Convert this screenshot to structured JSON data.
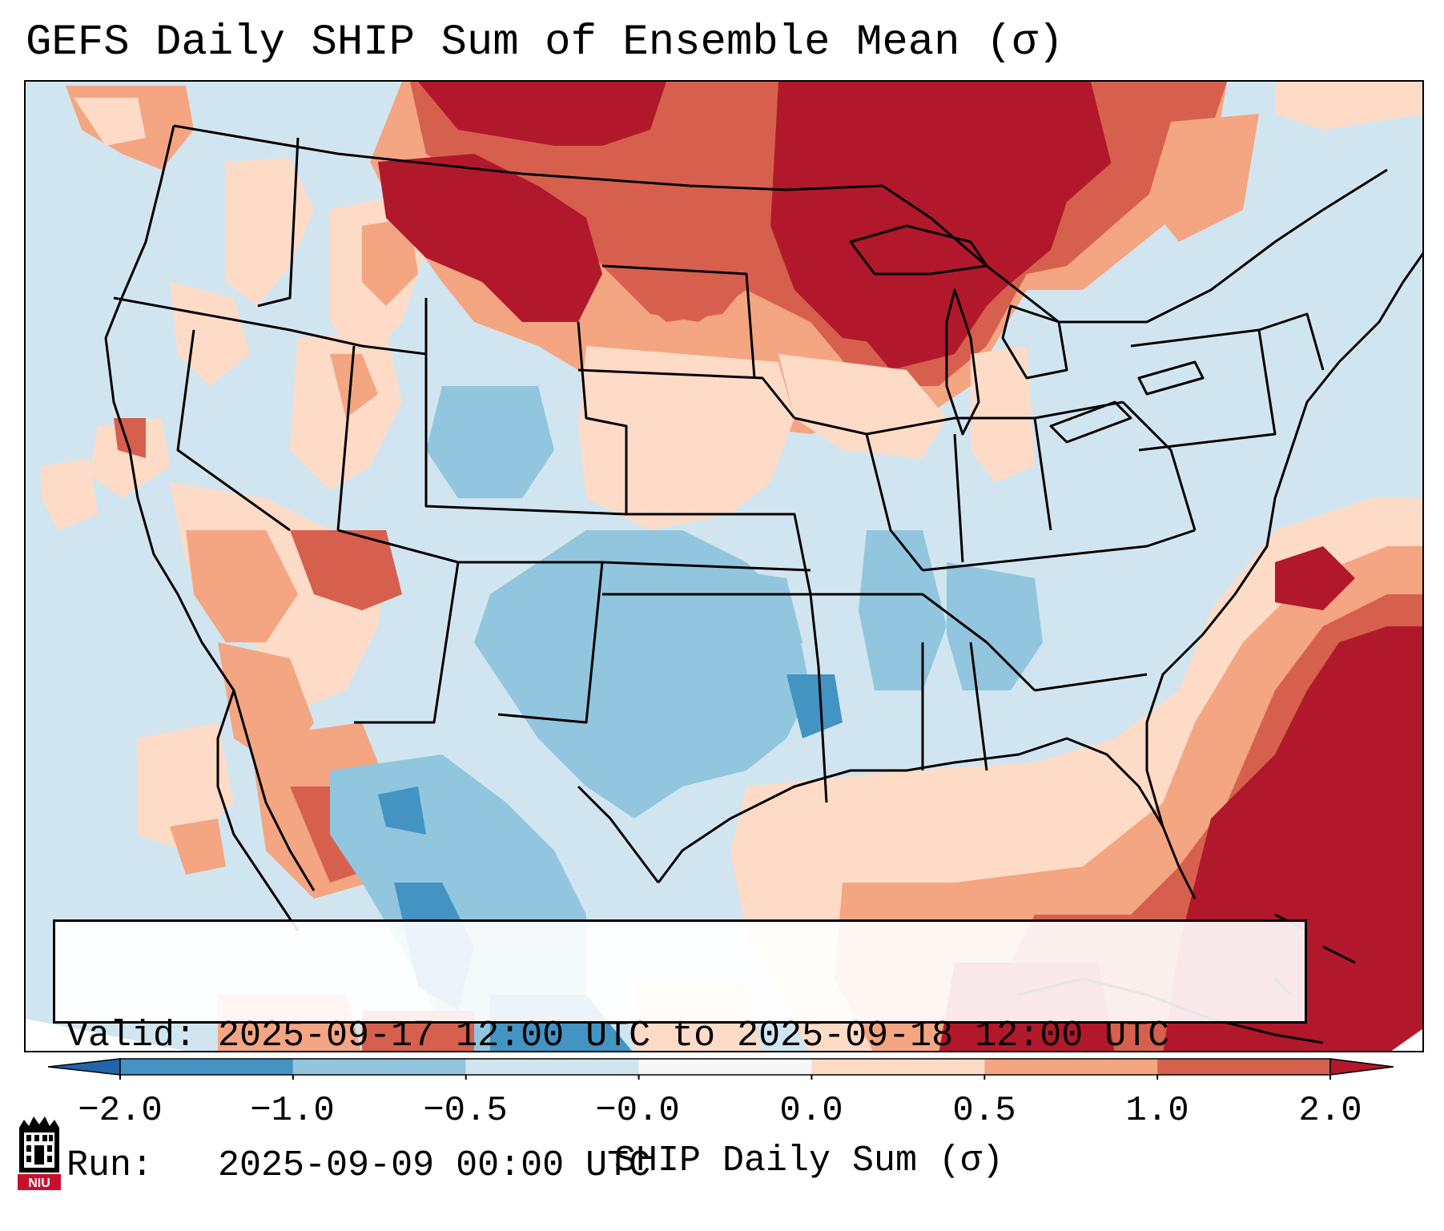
{
  "title": "GEFS Daily SHIP Sum of Ensemble Mean (σ)",
  "info": {
    "valid": "Valid: 2025-09-17 12:00 UTC to 2025-09-18 12:00 UTC",
    "run": "Run:   2025-09-09 00:00 UTC"
  },
  "colorbar": {
    "label": "SHIP Daily Sum (σ)",
    "ticks": [
      "−2.0",
      "−1.0",
      "−0.5",
      "−0.0",
      "0.0",
      "0.5",
      "1.0",
      "2.0"
    ],
    "colors": {
      "below": "#2166ac",
      "bins": [
        "#4393c3",
        "#92c5de",
        "#d1e5f0",
        "#f7f7f7",
        "#fddbc7",
        "#f4a582",
        "#d6604d"
      ],
      "above": "#b2182b"
    },
    "extend": "both"
  },
  "logo": {
    "icon": "niu-logo-icon",
    "text": "NIU",
    "color": "#c8102e"
  }
}
